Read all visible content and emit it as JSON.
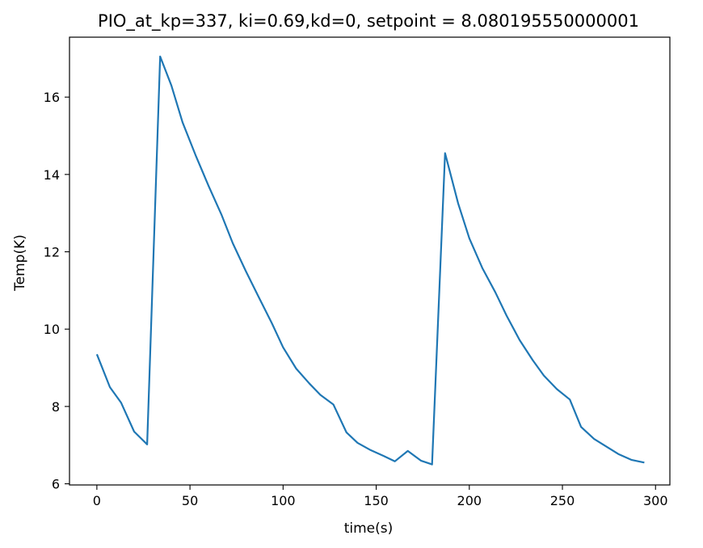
{
  "chart_data": {
    "type": "line",
    "title": "PIO_at_kp=337, ki=0.69,kd=0, setpoint = 8.080195550000001",
    "xlabel": "time(s)",
    "ylabel": "Temp(K)",
    "xlim": [
      -14.7,
      307.7
    ],
    "ylim": [
      5.97,
      17.55
    ],
    "xticks": [
      0,
      50,
      100,
      150,
      200,
      250,
      300
    ],
    "xtick_labels": [
      "0",
      "50",
      "100",
      "150",
      "200",
      "250",
      "300"
    ],
    "yticks": [
      6,
      8,
      10,
      12,
      14,
      16
    ],
    "ytick_labels": [
      "6",
      "8",
      "10",
      "12",
      "14",
      "16"
    ],
    "grid": false,
    "series": [
      {
        "color": "#1f77b4",
        "x": [
          0,
          7,
          13,
          20,
          27,
          34,
          40,
          46,
          53,
          60,
          67,
          73,
          80,
          87,
          94,
          100,
          107,
          114,
          120,
          127,
          134,
          140,
          147,
          154,
          160,
          167,
          174,
          180,
          187,
          194,
          200,
          207,
          214,
          220,
          227,
          234,
          240,
          247,
          254,
          260,
          267,
          274,
          280,
          287,
          294
        ],
        "y": [
          9.35,
          8.5,
          8.1,
          7.35,
          7.02,
          17.05,
          16.3,
          15.35,
          14.5,
          13.7,
          12.95,
          12.22,
          11.5,
          10.82,
          10.15,
          9.53,
          8.98,
          8.6,
          8.3,
          8.05,
          7.33,
          7.06,
          6.87,
          6.72,
          6.58,
          6.85,
          6.6,
          6.5,
          14.55,
          13.25,
          12.35,
          11.58,
          10.95,
          10.35,
          9.72,
          9.2,
          8.8,
          8.45,
          8.18,
          7.47,
          7.16,
          6.95,
          6.77,
          6.62,
          6.55
        ]
      }
    ]
  }
}
